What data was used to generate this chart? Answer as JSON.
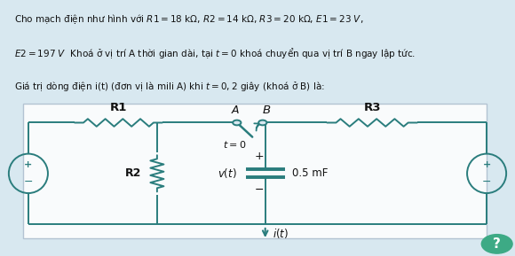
{
  "bg_color": "#d8e8f0",
  "text_color": "#111111",
  "circuit_color": "#2a7d7d",
  "title_lines": [
    "Cho mạch điện như hình với $R1 = 18$ k$\\Omega$, $R2 = 14$ k$\\Omega$, $R3 = 20$ k$\\Omega$, $E1 = 23$ $V$,",
    "$E2 = 197$ $V$  Khoá ở vị trí A thời gian dài, tại $t = 0$ khoá chuyển qua vị trí B ngay lập tức.",
    "Giá trị dòng điện i(t) (đơn vị là mili A) khi $t = 0, 2$ giây (khoá ở B) là:"
  ],
  "badge_color": "#3daa85",
  "badge_text": "?",
  "badge_text_color": "#ffffff",
  "fig_width": 5.8,
  "fig_height": 2.89,
  "dpi": 100
}
